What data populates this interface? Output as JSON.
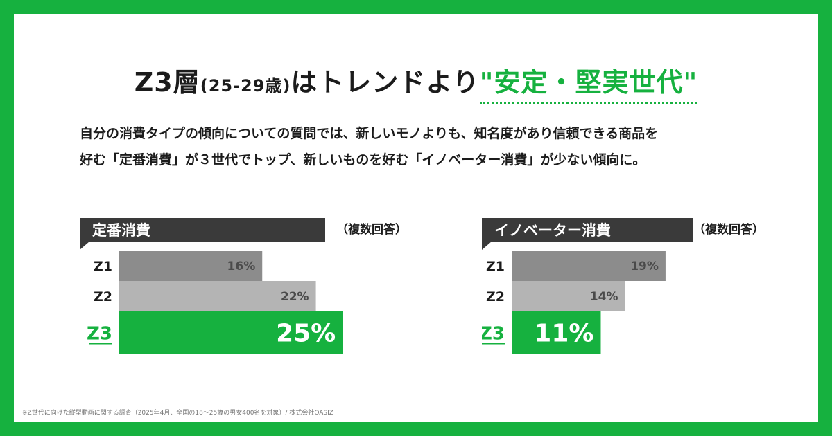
{
  "headline": {
    "part1": "Z3層",
    "part2": "(25-29歳)",
    "part3": "はトレンドより",
    "accent": "\"安定・堅実世代\""
  },
  "lead": {
    "line1": "自分の消費タイプの傾向についての質問では、新しいモノよりも、知名度があり信頼できる商品を",
    "line2": "好む「定番消費」が３世代でトップ、新しいものを好む「イノベーター消費」が少ない傾向に。"
  },
  "colors": {
    "background": "#16b13f",
    "accent": "#16b13f",
    "bar_dark": "#8c8c8c",
    "bar_light": "#b4b4b4",
    "label_bg": "#3a3a3a"
  },
  "chart_data": [
    {
      "type": "bar",
      "orientation": "horizontal",
      "title": "定番消費",
      "note": "（複数回答）",
      "categories": [
        "Z1",
        "Z2",
        "Z3"
      ],
      "values": [
        16,
        22,
        25
      ],
      "value_labels": [
        "16%",
        "22%",
        "25%"
      ],
      "highlight": "Z3"
    },
    {
      "type": "bar",
      "orientation": "horizontal",
      "title": "イノベーター消費",
      "note": "（複数回答）",
      "categories": [
        "Z1",
        "Z2",
        "Z3"
      ],
      "values": [
        19,
        14,
        11
      ],
      "value_labels": [
        "19%",
        "14%",
        "11%"
      ],
      "highlight": "Z3"
    }
  ],
  "footnote": "※Z世代に向けた縦型動画に関する調査（2025年4月、全国の18～25歳の男女400名を対象）/ 株式会社OASIZ"
}
